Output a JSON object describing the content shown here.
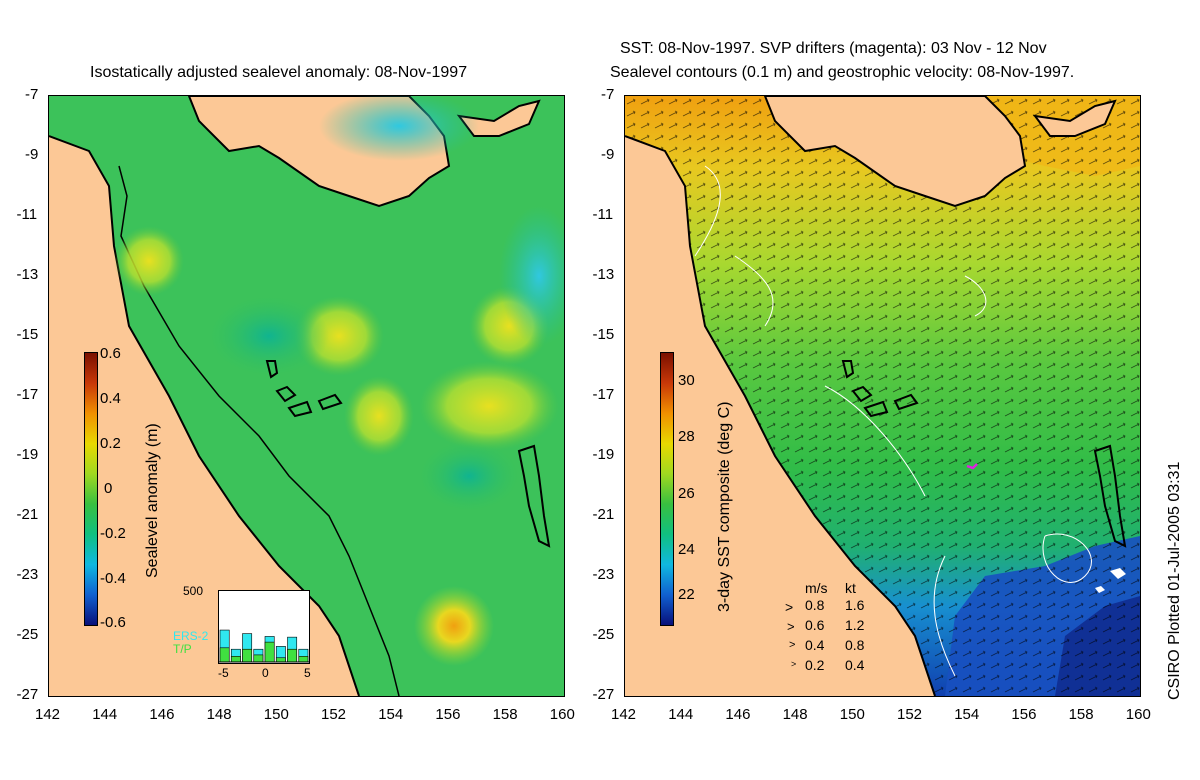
{
  "left_panel": {
    "title": "Isostatically adjusted sealevel anomaly: 08-Nov-1997",
    "colorbar": {
      "label": "Sealevel anomaly (m)",
      "ticks": [
        "0.6",
        "0.4",
        "0.2",
        "0",
        "-0.2",
        "-0.4",
        "-0.6"
      ],
      "colors": [
        "#08107a",
        "#1060d0",
        "#10b8e0",
        "#10c080",
        "#38c040",
        "#a0d820",
        "#e8d800",
        "#f09000",
        "#c83808",
        "#7a1000"
      ]
    },
    "inset": {
      "max_label": "500",
      "series": [
        "ERS-2",
        "T/P"
      ],
      "series_colors": [
        "#30e8f0",
        "#40e040"
      ],
      "x_ticks": [
        "-5",
        "0",
        "5"
      ],
      "bars_ers2": [
        0.45,
        0.18,
        0.4,
        0.18,
        0.36,
        0.22,
        0.35,
        0.18
      ],
      "bars_tp": [
        0.2,
        0.08,
        0.18,
        0.1,
        0.28,
        0.06,
        0.18,
        0.08
      ]
    }
  },
  "right_panel": {
    "title_line1": "SST: 08-Nov-1997. SVP drifters (magenta): 03 Nov - 12 Nov",
    "title_line2": "Sealevel contours (0.1 m) and geostrophic velocity: 08-Nov-1997.",
    "colorbar": {
      "label": "3-day SST composite (deg C)",
      "ticks": [
        "30",
        "28",
        "26",
        "24",
        "22"
      ],
      "colors": [
        "#08107a",
        "#1060d0",
        "#10b8e0",
        "#10c080",
        "#38c040",
        "#a0d820",
        "#e8d800",
        "#f09000",
        "#c83808",
        "#7a1000"
      ]
    },
    "velocity_legend": {
      "header_ms": "m/s",
      "header_kt": "kt",
      "rows": [
        {
          "ms": "0.8",
          "kt": "1.6"
        },
        {
          "ms": "0.6",
          "kt": "1.2"
        },
        {
          "ms": "0.4",
          "kt": "0.8"
        },
        {
          "ms": "0.2",
          "kt": "0.4"
        }
      ]
    }
  },
  "y_axis_labels": [
    "-7",
    "-9",
    "-11",
    "-13",
    "-15",
    "-17",
    "-19",
    "-21",
    "-23",
    "-25",
    "-27"
  ],
  "x_axis_labels": [
    "142",
    "144",
    "146",
    "148",
    "150",
    "152",
    "154",
    "156",
    "158",
    "160"
  ],
  "credit": "CSIRO Plotted 01-Jul-2005 03:31",
  "colors": {
    "land": "#fcc896",
    "ocean_left": "#3cc25a",
    "ocean_right": "#2ab448",
    "coast": "#000000"
  }
}
